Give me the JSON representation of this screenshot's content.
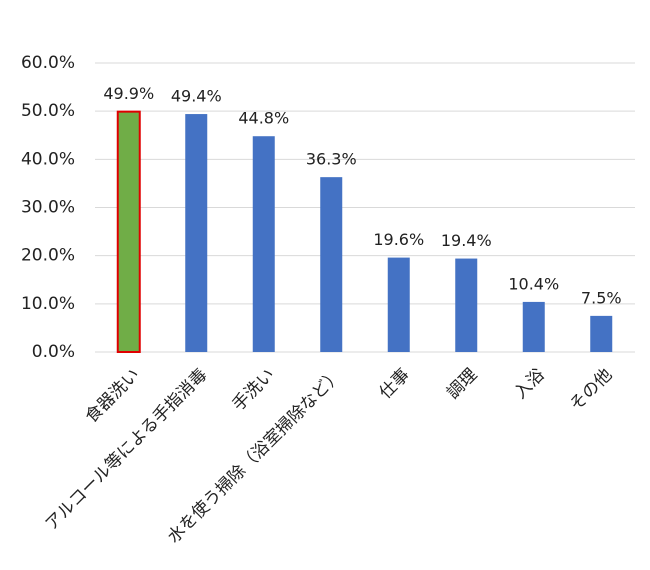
{
  "chart_data": {
    "type": "bar",
    "categories": [
      "食器洗い",
      "アルコール等による手指消毒",
      "手洗い",
      "水を使う掃除（浴室掃除など）",
      "仕事",
      "調理",
      "入浴",
      "その他"
    ],
    "values": [
      49.9,
      49.4,
      44.8,
      36.3,
      19.6,
      19.4,
      10.4,
      7.5
    ],
    "value_labels": [
      "49.9%",
      "49.4%",
      "44.8%",
      "36.3%",
      "19.6%",
      "19.4%",
      "10.4%",
      "7.5%"
    ],
    "colors": [
      "#70ad47",
      "#4472c4",
      "#4472c4",
      "#4472c4",
      "#4472c4",
      "#4472c4",
      "#4472c4",
      "#4472c4"
    ],
    "edgecolors": [
      "#e00000",
      null,
      null,
      null,
      null,
      null,
      null,
      null
    ],
    "ylim": [
      0,
      60
    ],
    "yticks": [
      {
        "value": 0,
        "label": "0.0%"
      },
      {
        "value": 10,
        "label": "10.0%"
      },
      {
        "value": 20,
        "label": "20.0%"
      },
      {
        "value": 30,
        "label": "30.0%"
      },
      {
        "value": 40,
        "label": "40.0%"
      },
      {
        "value": 50,
        "label": "50.0%"
      },
      {
        "value": 60,
        "label": "60.0%"
      }
    ],
    "grid": true
  }
}
